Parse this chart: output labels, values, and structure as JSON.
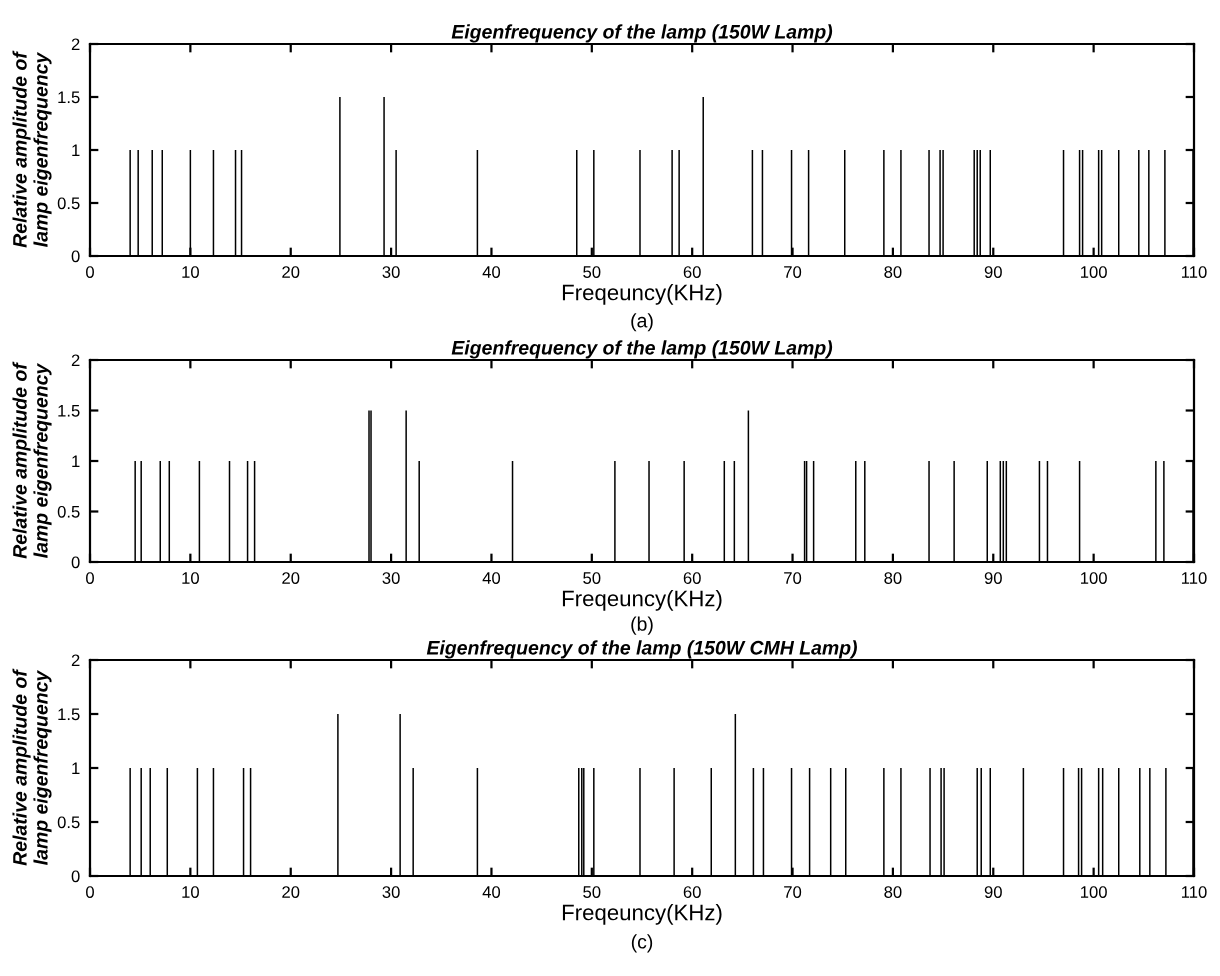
{
  "chart_data": [
    {
      "type": "bar",
      "title": "Eigenfrequency of the lamp (150W Lamp)",
      "xlabel": "Freqeuncy(KHz)",
      "ylabel": "Relative amplitude of\nlamp eigenfrequency",
      "annotations": [
        "(a)"
      ],
      "color": "#000000",
      "grid": false,
      "xlim": [
        0,
        110
      ],
      "ylim": [
        0,
        2
      ],
      "xticks": [
        0,
        10,
        20,
        30,
        40,
        50,
        60,
        70,
        80,
        90,
        100,
        110
      ],
      "yticks": [
        0,
        0.5,
        1,
        1.5,
        2
      ],
      "x": [
        4.0,
        4.8,
        6.2,
        7.2,
        10.0,
        12.3,
        14.5,
        15.1,
        24.9,
        29.3,
        30.5,
        38.6,
        48.5,
        50.2,
        54.8,
        58.0,
        58.7,
        61.1,
        66.0,
        67.0,
        69.9,
        71.6,
        75.2,
        79.1,
        80.8,
        83.6,
        84.7,
        85.0,
        88.1,
        88.4,
        88.7,
        89.7,
        97.0,
        98.6,
        98.9,
        100.5,
        100.8,
        102.5,
        104.5,
        105.5,
        107.1,
        109.9
      ],
      "values": [
        1,
        1,
        1,
        1,
        1,
        1,
        1,
        1,
        1.5,
        1.5,
        1,
        1,
        1,
        1,
        1,
        1,
        1,
        1.5,
        1,
        1,
        1,
        1,
        1,
        1,
        1,
        1,
        1,
        1,
        1,
        1,
        1,
        1,
        1,
        1,
        1,
        1,
        1,
        1,
        1,
        1,
        1,
        1
      ]
    },
    {
      "type": "bar",
      "title": "Eigenfrequency of the lamp (150W Lamp)",
      "xlabel": "Freqeuncy(KHz)",
      "ylabel": "Relative amplitude of\nlamp eigenfrequency",
      "annotations": [
        "(b)"
      ],
      "color": "#000000",
      "grid": false,
      "xlim": [
        0,
        110
      ],
      "ylim": [
        0,
        2
      ],
      "xticks": [
        0,
        10,
        20,
        30,
        40,
        50,
        60,
        70,
        80,
        90,
        100,
        110
      ],
      "yticks": [
        0,
        0.5,
        1,
        1.5,
        2
      ],
      "x": [
        4.5,
        5.1,
        7.0,
        7.9,
        10.9,
        13.9,
        15.7,
        16.4,
        27.8,
        28.0,
        31.5,
        32.8,
        42.1,
        52.3,
        55.7,
        59.2,
        63.2,
        64.2,
        65.6,
        71.2,
        71.4,
        72.1,
        76.3,
        77.2,
        83.6,
        86.1,
        89.4,
        90.7,
        91.0,
        91.3,
        94.6,
        95.4,
        98.6,
        106.2,
        107.0,
        109.9
      ],
      "values": [
        1,
        1,
        1,
        1,
        1,
        1,
        1,
        1,
        1.5,
        1.5,
        1.5,
        1,
        1,
        1,
        1,
        1,
        1,
        1,
        1.5,
        1,
        1,
        1,
        1,
        1,
        1,
        1,
        1,
        1,
        1,
        1,
        1,
        1,
        1,
        1,
        1,
        1
      ]
    },
    {
      "type": "bar",
      "title": "Eigenfrequency of the lamp (150W CMH Lamp)",
      "xlabel": "Freqeuncy(KHz)",
      "ylabel": "Relative amplitude of\nlamp eigenfrequency",
      "annotations": [
        "(c)"
      ],
      "color": "#000000",
      "grid": false,
      "xlim": [
        0,
        110
      ],
      "ylim": [
        0,
        2
      ],
      "xticks": [
        0,
        10,
        20,
        30,
        40,
        50,
        60,
        70,
        80,
        90,
        100,
        110
      ],
      "yticks": [
        0,
        0.5,
        1,
        1.5,
        2
      ],
      "x": [
        4.0,
        5.1,
        6.0,
        7.7,
        10.7,
        12.3,
        15.3,
        16.0,
        24.7,
        30.9,
        32.2,
        38.6,
        48.7,
        49.0,
        49.2,
        50.2,
        54.8,
        58.2,
        61.9,
        64.3,
        66.1,
        67.1,
        69.9,
        71.7,
        73.8,
        75.3,
        79.1,
        80.8,
        83.7,
        84.8,
        85.1,
        88.4,
        88.8,
        89.7,
        93.0,
        97.0,
        98.5,
        98.8,
        100.5,
        100.9,
        102.5,
        104.6,
        105.6,
        107.2,
        109.9
      ],
      "values": [
        1,
        1,
        1,
        1,
        1,
        1,
        1,
        1,
        1.5,
        1.5,
        1,
        1,
        1,
        1,
        1,
        1,
        1,
        1,
        1,
        1.5,
        1,
        1,
        1,
        1,
        1,
        1,
        1,
        1,
        1,
        1,
        1,
        1,
        1,
        1,
        1,
        1,
        1,
        1,
        1,
        1,
        1,
        1,
        1,
        1,
        1
      ]
    }
  ]
}
